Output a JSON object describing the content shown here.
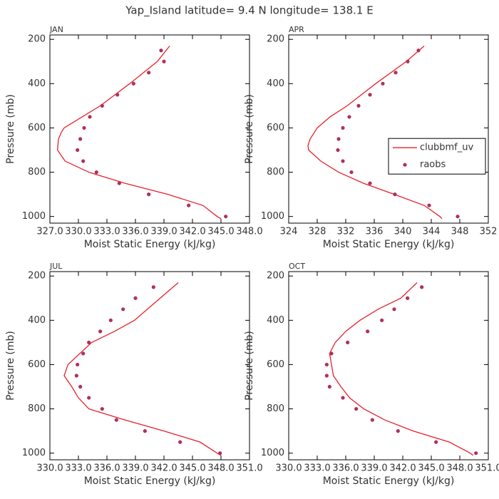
{
  "title": "Yap_Island  latitude= 9.4 N longitude= 138.1 E",
  "chart_data": [
    {
      "type": "line",
      "title": "JAN",
      "xlabel": "Moist Static Energy (kJ/kg)",
      "ylabel": "Pressure (mb)",
      "xlim": [
        327,
        348
      ],
      "xticks": [
        {
          "value": 327,
          "label": "327.0"
        },
        {
          "value": 330,
          "label": "330.0"
        },
        {
          "value": 333,
          "label": "333.0"
        },
        {
          "value": 336,
          "label": "336.0"
        },
        {
          "value": 339,
          "label": "339.0"
        },
        {
          "value": 342,
          "label": "342.0"
        },
        {
          "value": 345,
          "label": "345.0"
        },
        {
          "value": 348,
          "label": "348.0"
        }
      ],
      "ylim": [
        1030,
        180
      ],
      "yticks": [
        200,
        400,
        600,
        800,
        1000
      ],
      "series": [
        {
          "type": "line",
          "color": "#e8202a",
          "x": [
            339.6,
            338.3,
            335.4,
            332.3,
            328.5,
            328.2,
            327.9,
            327.8,
            328.6,
            331.1,
            334.9,
            339.4,
            343.1,
            344.6,
            345.0
          ],
          "values": [
            230,
            300,
            400,
            500,
            600,
            620,
            650,
            700,
            750,
            800,
            850,
            900,
            950,
            1000,
            1010
          ]
        },
        {
          "type": "scatter",
          "color": "#b0305a",
          "x": [
            338.7,
            339.0,
            337.4,
            335.8,
            334.1,
            332.5,
            331.2,
            330.6,
            330.2,
            329.9,
            330.5,
            331.9,
            334.3,
            337.4,
            341.6,
            345.5
          ],
          "values": [
            250,
            300,
            350,
            400,
            450,
            500,
            550,
            600,
            650,
            700,
            750,
            800,
            850,
            900,
            950,
            1000
          ]
        }
      ]
    },
    {
      "type": "line",
      "title": "APR",
      "xlabel": "Moist Static Energy (kJ/kg)",
      "ylabel": "Pressure (mb)",
      "xlim": [
        324,
        352
      ],
      "xticks": [
        324,
        328,
        332,
        336,
        340,
        344,
        348,
        352
      ],
      "ylim": [
        1030,
        180
      ],
      "yticks": [
        200,
        400,
        600,
        800,
        1000
      ],
      "legend": "right",
      "series": [
        {
          "type": "line",
          "name": "clubbmf_uv",
          "color": "#e8202a",
          "x": [
            343.0,
            340.5,
            336.2,
            332.2,
            329.8,
            328.0,
            327.0,
            326.7,
            326.8,
            328.5,
            331.0,
            334.5,
            338.8,
            343.0,
            345.2,
            345.5
          ],
          "values": [
            230,
            300,
            400,
            500,
            550,
            600,
            650,
            680,
            700,
            750,
            800,
            850,
            900,
            950,
            1000,
            1010
          ]
        },
        {
          "type": "scatter",
          "name": "raobs",
          "color": "#b0305a",
          "x": [
            342.2,
            340.7,
            339.0,
            337.2,
            335.4,
            333.8,
            332.5,
            331.6,
            331.0,
            330.9,
            331.6,
            332.8,
            335.4,
            338.9,
            343.7,
            347.7
          ],
          "values": [
            250,
            300,
            350,
            400,
            450,
            500,
            550,
            600,
            650,
            700,
            750,
            800,
            850,
            900,
            950,
            1000
          ]
        }
      ]
    },
    {
      "type": "line",
      "title": "JUL",
      "xlabel": "Moist Static Energy (kJ/kg)",
      "ylabel": "Pressure (mb)",
      "xlim": [
        330,
        351
      ],
      "xticks": [
        {
          "value": 330,
          "label": "330.0"
        },
        {
          "value": 333,
          "label": "333.0"
        },
        {
          "value": 336,
          "label": "336.0"
        },
        {
          "value": 339,
          "label": "339.0"
        },
        {
          "value": 342,
          "label": "342.0"
        },
        {
          "value": 345,
          "label": "345.0"
        },
        {
          "value": 348,
          "label": "348.0"
        },
        {
          "value": 351,
          "label": "351.0"
        }
      ],
      "ylim": [
        1030,
        180
      ],
      "yticks": [
        200,
        400,
        600,
        800,
        1000
      ],
      "series": [
        {
          "type": "line",
          "color": "#e8202a",
          "x": [
            343.5,
            341.6,
            338.9,
            336.8,
            334.4,
            331.9,
            331.5,
            332.3,
            333.0,
            334.1,
            337.9,
            342.0,
            345.8,
            347.6,
            348.0
          ],
          "values": [
            230,
            300,
            400,
            450,
            500,
            600,
            650,
            700,
            750,
            800,
            850,
            900,
            950,
            1000,
            1010
          ]
        },
        {
          "type": "scatter",
          "color": "#b0305a",
          "x": [
            340.9,
            339.0,
            337.7,
            336.4,
            335.3,
            334.1,
            333.5,
            332.9,
            332.8,
            333.2,
            334.1,
            335.5,
            337.0,
            340.0,
            343.7,
            347.9
          ],
          "values": [
            250,
            300,
            350,
            400,
            450,
            500,
            550,
            600,
            650,
            700,
            750,
            800,
            850,
            900,
            950,
            1000
          ]
        }
      ]
    },
    {
      "type": "line",
      "title": "OCT",
      "xlabel": "Moist Static Energy (kJ/kg)",
      "ylabel": "Pressure (mb)",
      "xlim": [
        330,
        351
      ],
      "xticks": [
        {
          "value": 330,
          "label": "330.0"
        },
        {
          "value": 333,
          "label": "333.0"
        },
        {
          "value": 336,
          "label": "336.0"
        },
        {
          "value": 339,
          "label": "339.0"
        },
        {
          "value": 342,
          "label": "342.0"
        },
        {
          "value": 345,
          "label": "345.0"
        },
        {
          "value": 348,
          "label": "348.0"
        },
        {
          "value": 351,
          "label": "351.0"
        }
      ],
      "ylim": [
        1030,
        180
      ],
      "yticks": [
        200,
        400,
        600,
        800,
        1000
      ],
      "series": [
        {
          "type": "line",
          "color": "#e8202a",
          "x": [
            343.5,
            341.8,
            339.4,
            337.5,
            336.0,
            334.9,
            334.3,
            334.5,
            334.7,
            335.5,
            336.4,
            337.9,
            340.1,
            343.1,
            346.9,
            349.1,
            349.4
          ],
          "values": [
            230,
            300,
            350,
            400,
            450,
            500,
            550,
            600,
            650,
            700,
            750,
            800,
            850,
            900,
            950,
            1000,
            1010
          ]
        },
        {
          "type": "scatter",
          "color": "#b0305a",
          "x": [
            344.0,
            342.5,
            341.1,
            339.8,
            338.3,
            336.2,
            334.5,
            334.0,
            334.0,
            334.3,
            335.7,
            337.1,
            338.8,
            341.5,
            345.5,
            349.7
          ],
          "values": [
            250,
            300,
            350,
            400,
            450,
            500,
            550,
            600,
            650,
            700,
            750,
            800,
            850,
            900,
            950,
            1000
          ]
        }
      ]
    }
  ]
}
